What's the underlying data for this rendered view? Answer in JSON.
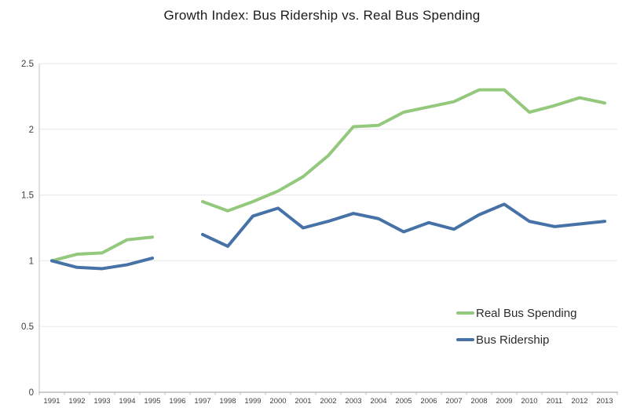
{
  "title": "Growth Index: Bus Ridership vs. Real Bus Spending",
  "colors": {
    "spending_line": "#94c87d",
    "ridership_line": "#4672a7",
    "gridline": "#e8e8e8",
    "axis_line": "#bdbdbd",
    "y_axis_line": "#d6d6d6",
    "tick": "#bdbdbd",
    "axis_text": "#3f3f3f",
    "title_text": "#1a1a1a"
  },
  "legend": {
    "items": [
      {
        "label": "Real Bus Spending",
        "series_index": 0
      },
      {
        "label": "Bus Ridership",
        "series_index": 1
      }
    ]
  },
  "chart_data": {
    "type": "line",
    "title": "Growth Index: Bus Ridership vs. Real Bus Spending",
    "x": [
      1991,
      1992,
      1993,
      1994,
      1995,
      1996,
      1997,
      1998,
      1999,
      2000,
      2001,
      2002,
      2003,
      2004,
      2005,
      2006,
      2007,
      2008,
      2009,
      2010,
      2011,
      2012,
      2013
    ],
    "series": [
      {
        "name": "Real Bus Spending",
        "color": "#94c87d",
        "values": [
          1.0,
          1.05,
          1.06,
          1.16,
          1.18,
          null,
          1.45,
          1.38,
          1.45,
          1.53,
          1.64,
          1.8,
          2.02,
          2.03,
          2.13,
          2.17,
          2.21,
          2.3,
          2.3,
          2.13,
          2.18,
          2.24,
          2.2
        ]
      },
      {
        "name": "Bus Ridership",
        "color": "#4672a7",
        "values": [
          1.0,
          0.95,
          0.94,
          0.97,
          1.02,
          null,
          1.2,
          1.11,
          1.34,
          1.4,
          1.25,
          1.3,
          1.36,
          1.32,
          1.22,
          1.29,
          1.24,
          1.35,
          1.43,
          1.3,
          1.26,
          1.28,
          1.3
        ]
      }
    ],
    "xlabel": "",
    "ylabel": "",
    "ylim": [
      0,
      2.5
    ],
    "ytick_step": 0.5,
    "ytick_labels": [
      "0",
      "0.5",
      "1",
      "1.5",
      "2",
      "2.5"
    ],
    "grid": true,
    "gap_years": [
      1996
    ],
    "legend_position": "inside-lower-right"
  }
}
